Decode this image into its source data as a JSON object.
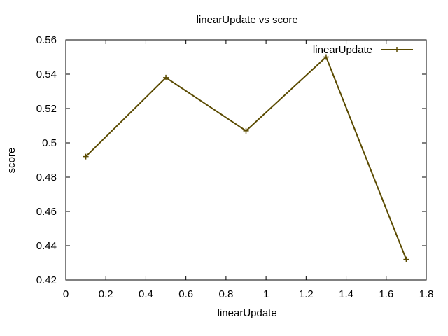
{
  "chart_data": {
    "type": "line",
    "title": "_linearUpdate vs score",
    "xlabel": "_linearUpdate",
    "ylabel": "score",
    "xlim": [
      0,
      1.8
    ],
    "ylim": [
      0.42,
      0.56
    ],
    "xticks": [
      "0",
      "0.2",
      "0.4",
      "0.6",
      "0.8",
      "1",
      "1.2",
      "1.4",
      "1.6",
      "1.8"
    ],
    "yticks": [
      "0.42",
      "0.44",
      "0.46",
      "0.48",
      "0.5",
      "0.52",
      "0.54",
      "0.56"
    ],
    "grid": false,
    "legend_position": "top-right",
    "series": [
      {
        "name": "_linearUpdate",
        "color": "#5a4a00",
        "marker": "plus",
        "x": [
          0.1,
          0.5,
          0.9,
          1.3,
          1.7
        ],
        "y": [
          0.492,
          0.538,
          0.507,
          0.55,
          0.432
        ]
      }
    ]
  }
}
